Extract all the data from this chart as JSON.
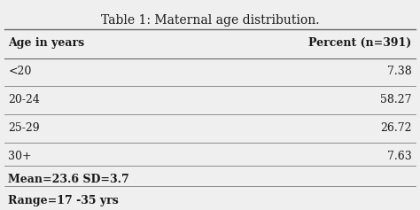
{
  "title_bold": "Table 1:",
  "title_normal": " Maternal age distribution.",
  "col1_header": "Age in years",
  "col2_header": "Percent (n=391)",
  "rows": [
    [
      "<20",
      "7.38"
    ],
    [
      "20-24",
      "58.27"
    ],
    [
      "25-29",
      "26.72"
    ],
    [
      "30+",
      "7.63"
    ]
  ],
  "footer1_bold": "Mean",
  "footer1_normal": "=23.6 SD=3.7",
  "footer2_bold": "Range",
  "footer2_normal": "=17 -35 yrs",
  "bg_color": "#efefef",
  "text_color": "#1a1a1a",
  "line_color": "#666666",
  "font_size": 9,
  "title_font_size": 10
}
